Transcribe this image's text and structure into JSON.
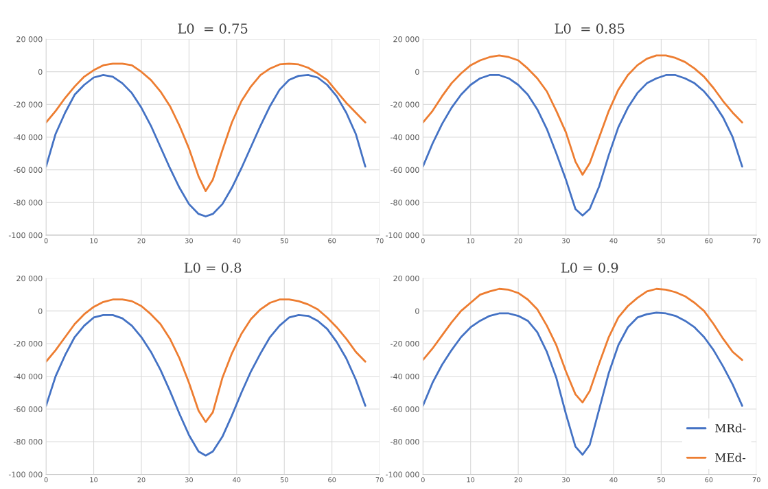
{
  "chart_data": [
    {
      "type": "line",
      "title": "L0  = 0.75",
      "x": [
        0,
        2,
        4,
        6,
        8,
        10,
        12,
        14,
        16,
        18,
        20,
        22,
        24,
        26,
        28,
        30,
        32,
        33.5,
        35,
        37,
        39,
        41,
        43,
        45,
        47,
        49,
        51,
        53,
        55,
        57,
        59,
        61,
        63,
        65,
        67
      ],
      "series": [
        {
          "color": "#4472c4",
          "values": [
            -58000,
            -38000,
            -25000,
            -14000,
            -8000,
            -3500,
            -2000,
            -3000,
            -7000,
            -13000,
            -22000,
            -33000,
            -46000,
            -59000,
            -71000,
            -81000,
            -87000,
            -88500,
            -87000,
            -81000,
            -71000,
            -59000,
            -46000,
            -33000,
            -21000,
            -11000,
            -5000,
            -2500,
            -2000,
            -3500,
            -8000,
            -15000,
            -25000,
            -38000,
            -58000
          ]
        },
        {
          "color": "#ed7d31",
          "values": [
            -31000,
            -24000,
            -16000,
            -9000,
            -3000,
            1000,
            4000,
            5000,
            5000,
            4000,
            0,
            -5000,
            -12000,
            -21000,
            -33000,
            -47000,
            -64000,
            -73000,
            -66000,
            -48000,
            -31000,
            -18000,
            -9000,
            -2000,
            2000,
            4500,
            5000,
            4500,
            2500,
            -1000,
            -5000,
            -12000,
            -19000,
            -25000,
            -31000
          ]
        }
      ],
      "xlim": [
        0,
        70
      ],
      "xticks": [
        0,
        10,
        20,
        30,
        40,
        50,
        60,
        70
      ],
      "ylim": [
        -100000,
        20000
      ],
      "yticks": [
        {
          "value": -100000,
          "label": "-100 000"
        },
        {
          "value": -80000,
          "label": "-80 000"
        },
        {
          "value": -60000,
          "label": "-60 000"
        },
        {
          "value": -40000,
          "label": "-40 000"
        },
        {
          "value": -20000,
          "label": "-20 000"
        },
        {
          "value": 0,
          "label": "0"
        },
        {
          "value": 20000,
          "label": "20 000"
        }
      ],
      "grid": true,
      "legend": false,
      "marker": "none",
      "line_style": "solid"
    },
    {
      "type": "line",
      "title": "L0  = 0.85",
      "x": [
        0,
        2,
        4,
        6,
        8,
        10,
        12,
        14,
        16,
        18,
        20,
        22,
        24,
        26,
        28,
        30,
        32,
        33.5,
        35,
        37,
        39,
        41,
        43,
        45,
        47,
        49,
        51,
        53,
        55,
        57,
        59,
        61,
        63,
        65,
        67
      ],
      "series": [
        {
          "color": "#4472c4",
          "values": [
            -58000,
            -44000,
            -32000,
            -22000,
            -14000,
            -8000,
            -4000,
            -2000,
            -2000,
            -4000,
            -8000,
            -14000,
            -23000,
            -35000,
            -50000,
            -66000,
            -84000,
            -88000,
            -84000,
            -70000,
            -51000,
            -34000,
            -22000,
            -13000,
            -7000,
            -4000,
            -2000,
            -2000,
            -4000,
            -7000,
            -12000,
            -19000,
            -28000,
            -40000,
            -58000
          ]
        },
        {
          "color": "#ed7d31",
          "values": [
            -31000,
            -24000,
            -15000,
            -7000,
            -1000,
            4000,
            7000,
            9000,
            10000,
            9000,
            7000,
            2000,
            -4000,
            -12000,
            -24000,
            -37000,
            -55000,
            -63000,
            -56000,
            -40000,
            -24000,
            -11000,
            -2000,
            4000,
            8000,
            10000,
            10000,
            8500,
            6000,
            2000,
            -3000,
            -10000,
            -18000,
            -25000,
            -31000
          ]
        }
      ],
      "xlim": [
        0,
        70
      ],
      "xticks": [
        0,
        10,
        20,
        30,
        40,
        50,
        60,
        70
      ],
      "ylim": [
        -100000,
        20000
      ],
      "yticks": [
        {
          "value": -100000,
          "label": "-100 000"
        },
        {
          "value": -80000,
          "label": "-80 000"
        },
        {
          "value": -60000,
          "label": "-60 000"
        },
        {
          "value": -40000,
          "label": "-40 000"
        },
        {
          "value": -20000,
          "label": "-20 000"
        },
        {
          "value": 0,
          "label": "0"
        },
        {
          "value": 20000,
          "label": "20 000"
        }
      ],
      "grid": true,
      "legend": false,
      "marker": "none",
      "line_style": "solid"
    },
    {
      "type": "line",
      "title": "L0 = 0.8",
      "x": [
        0,
        2,
        4,
        6,
        8,
        10,
        12,
        14,
        16,
        18,
        20,
        22,
        24,
        26,
        28,
        30,
        32,
        33.5,
        35,
        37,
        39,
        41,
        43,
        45,
        47,
        49,
        51,
        53,
        55,
        57,
        59,
        61,
        63,
        65,
        67
      ],
      "series": [
        {
          "color": "#4472c4",
          "values": [
            -58000,
            -40000,
            -27000,
            -16000,
            -9000,
            -4000,
            -2500,
            -2500,
            -4500,
            -9000,
            -16000,
            -25000,
            -36000,
            -49000,
            -63000,
            -76000,
            -86000,
            -88500,
            -86000,
            -77000,
            -64000,
            -50000,
            -37000,
            -26000,
            -16000,
            -9000,
            -4000,
            -2500,
            -3000,
            -6000,
            -11000,
            -19000,
            -29000,
            -42000,
            -58000
          ]
        },
        {
          "color": "#ed7d31",
          "values": [
            -31000,
            -24000,
            -16000,
            -8000,
            -2000,
            2500,
            5500,
            7000,
            7000,
            6000,
            3000,
            -2000,
            -8000,
            -17000,
            -29000,
            -44000,
            -61000,
            -68000,
            -62000,
            -41000,
            -26000,
            -14000,
            -5000,
            1000,
            5000,
            7000,
            7000,
            6000,
            4000,
            1000,
            -4000,
            -10000,
            -17000,
            -25000,
            -31000
          ]
        }
      ],
      "xlim": [
        0,
        70
      ],
      "xticks": [
        0,
        10,
        20,
        30,
        40,
        50,
        60,
        70
      ],
      "ylim": [
        -100000,
        20000
      ],
      "yticks": [
        {
          "value": -100000,
          "label": "-100 000"
        },
        {
          "value": -80000,
          "label": "-80 000"
        },
        {
          "value": -60000,
          "label": "-60 000"
        },
        {
          "value": -40000,
          "label": "-40 000"
        },
        {
          "value": -20000,
          "label": "-20 000"
        },
        {
          "value": 0,
          "label": "0"
        },
        {
          "value": 20000,
          "label": "20 000"
        }
      ],
      "grid": true,
      "legend": false,
      "marker": "none",
      "line_style": "solid"
    },
    {
      "type": "line",
      "title": "L0 = 0.9",
      "x": [
        0,
        2,
        4,
        6,
        8,
        10,
        12,
        14,
        16,
        18,
        20,
        22,
        24,
        26,
        28,
        30,
        32,
        33.5,
        35,
        37,
        39,
        41,
        43,
        45,
        47,
        49,
        51,
        53,
        55,
        57,
        59,
        61,
        63,
        65,
        67
      ],
      "series": [
        {
          "name": "MRd-",
          "color": "#4472c4",
          "values": [
            -58000,
            -44000,
            -33000,
            -24000,
            -16000,
            -10000,
            -6000,
            -3000,
            -1500,
            -1500,
            -3000,
            -6000,
            -13000,
            -25000,
            -41000,
            -63000,
            -83000,
            -88000,
            -82000,
            -60000,
            -38000,
            -21000,
            -10000,
            -4000,
            -2000,
            -1000,
            -1500,
            -3000,
            -6000,
            -10000,
            -16000,
            -24000,
            -34000,
            -45000,
            -58000
          ]
        },
        {
          "name": "MEd-",
          "color": "#ed7d31",
          "values": [
            -30000,
            -23000,
            -15000,
            -7000,
            0,
            5000,
            10000,
            12000,
            13500,
            13000,
            11000,
            7000,
            1000,
            -9000,
            -21000,
            -37000,
            -51000,
            -56000,
            -49000,
            -32000,
            -16000,
            -4000,
            3000,
            8000,
            12000,
            13500,
            13000,
            11500,
            9000,
            5000,
            0,
            -8000,
            -17000,
            -25000,
            -30000
          ]
        }
      ],
      "xlim": [
        0,
        70
      ],
      "xticks": [
        0,
        10,
        20,
        30,
        40,
        50,
        60,
        70
      ],
      "ylim": [
        -100000,
        20000
      ],
      "yticks": [
        {
          "value": -100000,
          "label": "-100 000"
        },
        {
          "value": -80000,
          "label": "-80 000"
        },
        {
          "value": -60000,
          "label": "-60 000"
        },
        {
          "value": -40000,
          "label": "-40 000"
        },
        {
          "value": -20000,
          "label": "-20 000"
        },
        {
          "value": 0,
          "label": "0"
        },
        {
          "value": 20000,
          "label": "20 000"
        }
      ],
      "grid": true,
      "legend": "bottom right",
      "marker": "none",
      "line_style": "solid"
    }
  ]
}
